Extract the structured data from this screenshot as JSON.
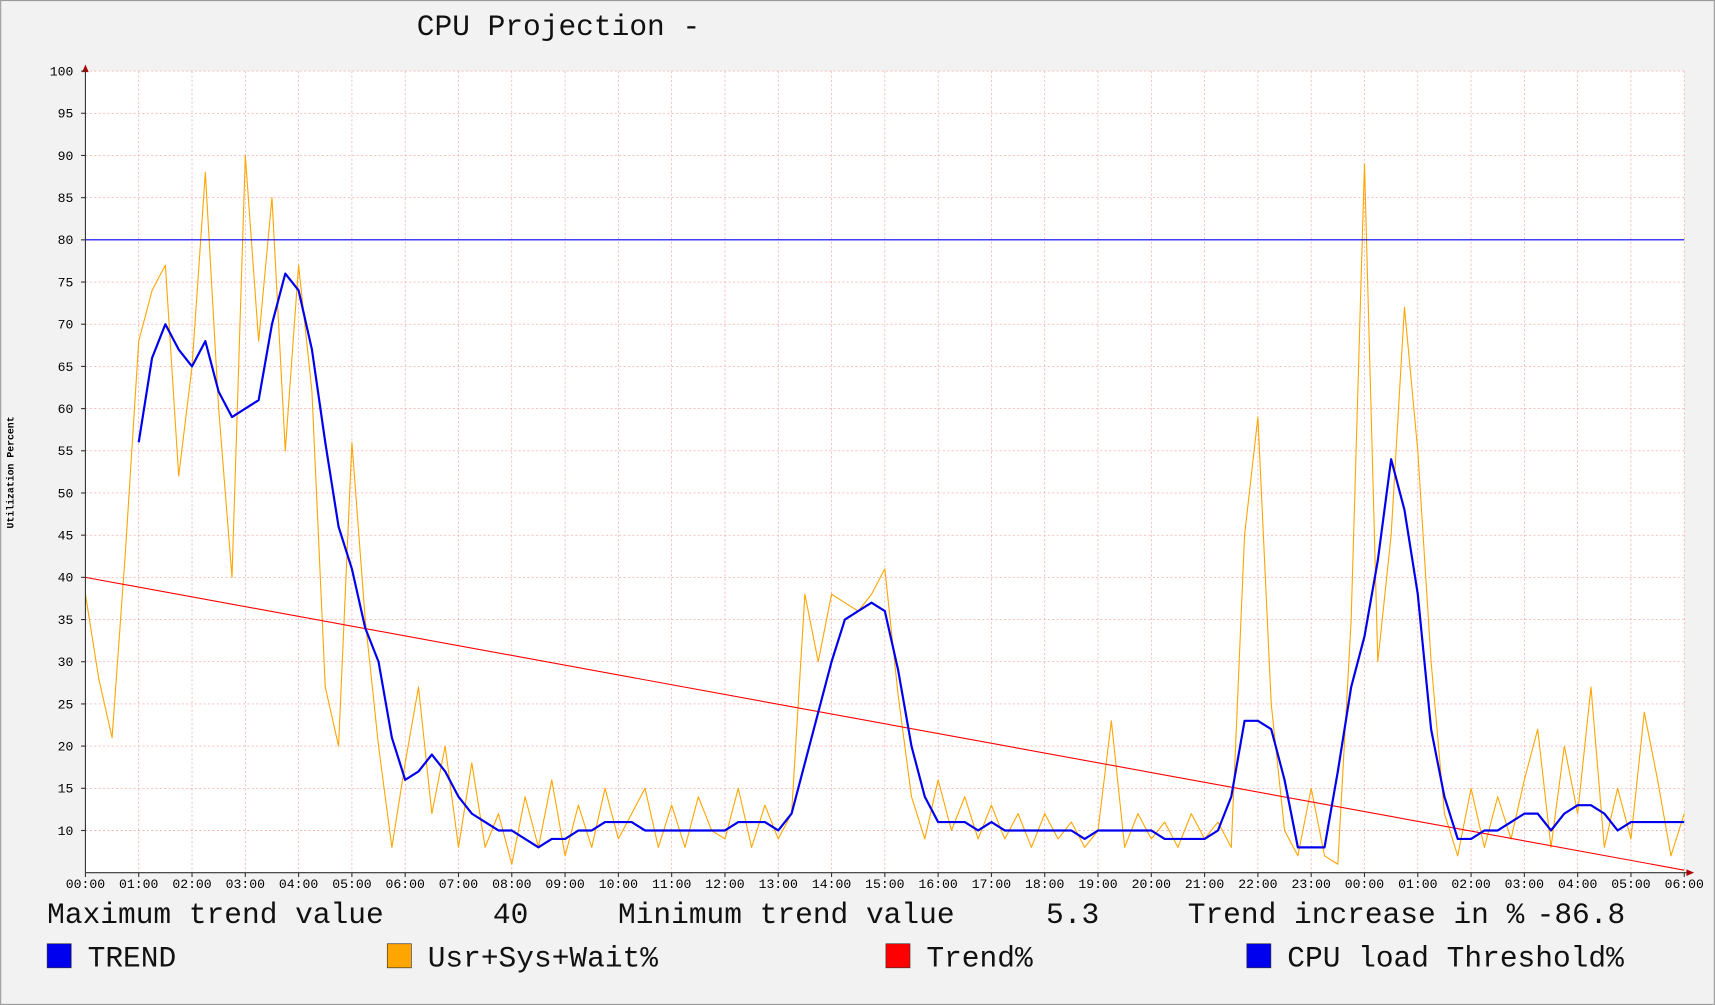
{
  "chart_data": {
    "type": "line",
    "title": "CPU Projection -",
    "y_label": "Utilization Percent",
    "xlim": [
      0,
      30
    ],
    "xticks": [
      {
        "value": 0,
        "label": "00:00"
      },
      {
        "value": 1,
        "label": "01:00"
      },
      {
        "value": 2,
        "label": "02:00"
      },
      {
        "value": 3,
        "label": "03:00"
      },
      {
        "value": 4,
        "label": "04:00"
      },
      {
        "value": 5,
        "label": "05:00"
      },
      {
        "value": 6,
        "label": "06:00"
      },
      {
        "value": 7,
        "label": "07:00"
      },
      {
        "value": 8,
        "label": "08:00"
      },
      {
        "value": 9,
        "label": "09:00"
      },
      {
        "value": 10,
        "label": "10:00"
      },
      {
        "value": 11,
        "label": "11:00"
      },
      {
        "value": 12,
        "label": "12:00"
      },
      {
        "value": 13,
        "label": "13:00"
      },
      {
        "value": 14,
        "label": "14:00"
      },
      {
        "value": 15,
        "label": "15:00"
      },
      {
        "value": 16,
        "label": "16:00"
      },
      {
        "value": 17,
        "label": "17:00"
      },
      {
        "value": 18,
        "label": "18:00"
      },
      {
        "value": 19,
        "label": "19:00"
      },
      {
        "value": 20,
        "label": "20:00"
      },
      {
        "value": 21,
        "label": "21:00"
      },
      {
        "value": 22,
        "label": "22:00"
      },
      {
        "value": 23,
        "label": "23:00"
      },
      {
        "value": 24,
        "label": "00:00"
      },
      {
        "value": 25,
        "label": "01:00"
      },
      {
        "value": 26,
        "label": "02:00"
      },
      {
        "value": 27,
        "label": "03:00"
      },
      {
        "value": 28,
        "label": "04:00"
      },
      {
        "value": 29,
        "label": "05:00"
      },
      {
        "value": 30,
        "label": "06:00"
      }
    ],
    "ylim": [
      5,
      100
    ],
    "yticks": [
      10,
      15,
      20,
      25,
      30,
      35,
      40,
      45,
      50,
      55,
      60,
      65,
      70,
      75,
      80,
      85,
      90,
      95,
      100
    ],
    "grid": true,
    "series": [
      {
        "name": "TREND",
        "color": "#0000ee",
        "x": [
          1,
          1.25,
          1.5,
          1.75,
          2,
          2.25,
          2.5,
          2.75,
          3,
          3.25,
          3.5,
          3.75,
          4,
          4.25,
          4.5,
          4.75,
          5,
          5.25,
          5.5,
          5.75,
          6,
          6.25,
          6.5,
          6.75,
          7,
          7.25,
          7.5,
          7.75,
          8,
          8.25,
          8.5,
          8.75,
          9,
          9.25,
          9.5,
          9.75,
          10,
          10.25,
          10.5,
          10.75,
          11,
          11.25,
          11.5,
          11.75,
          12,
          12.25,
          12.5,
          12.75,
          13,
          13.25,
          13.5,
          13.75,
          14,
          14.25,
          14.5,
          14.75,
          15,
          15.25,
          15.5,
          15.75,
          16,
          16.25,
          16.5,
          16.75,
          17,
          17.25,
          17.5,
          17.75,
          18,
          18.25,
          18.5,
          18.75,
          19,
          19.25,
          19.5,
          19.75,
          20,
          20.25,
          20.5,
          20.75,
          21,
          21.25,
          21.5,
          21.75,
          22,
          22.25,
          22.5,
          22.75,
          23,
          23.25,
          23.5,
          23.75,
          24,
          24.25,
          24.5,
          24.75,
          25,
          25.25,
          25.5,
          25.75,
          26,
          26.25,
          26.5,
          26.75,
          27,
          27.25,
          27.5,
          27.75,
          28,
          28.25,
          28.5,
          28.75,
          29,
          29.25,
          29.5,
          29.75,
          30
        ],
        "values": [
          56,
          66,
          70,
          67,
          65,
          68,
          62,
          59,
          60,
          61,
          70,
          76,
          74,
          67,
          56,
          46,
          41,
          34,
          30,
          21,
          16,
          17,
          19,
          17,
          14,
          12,
          11,
          10,
          10,
          9,
          8,
          9,
          9,
          10,
          10,
          11,
          11,
          11,
          10,
          10,
          10,
          10,
          10,
          10,
          10,
          11,
          11,
          11,
          10,
          12,
          18,
          24,
          30,
          35,
          36,
          37,
          36,
          29,
          20,
          14,
          11,
          11,
          11,
          10,
          11,
          10,
          10,
          10,
          10,
          10,
          10,
          9,
          10,
          10,
          10,
          10,
          10,
          9,
          9,
          9,
          9,
          10,
          14,
          23,
          23,
          22,
          16,
          8,
          8,
          8,
          17,
          27,
          33,
          42,
          54,
          48,
          38,
          22,
          14,
          9,
          9,
          10,
          10,
          11,
          12,
          12,
          10,
          12,
          13,
          13,
          12,
          10,
          11,
          11,
          11,
          11,
          11
        ]
      },
      {
        "name": "Usr+Sys+Wait%",
        "color": "#ffa500",
        "x": [
          0,
          0.25,
          0.5,
          0.75,
          1,
          1.25,
          1.5,
          1.75,
          2,
          2.25,
          2.5,
          2.75,
          3,
          3.25,
          3.5,
          3.75,
          4,
          4.25,
          4.5,
          4.75,
          5,
          5.25,
          5.5,
          5.75,
          6,
          6.25,
          6.5,
          6.75,
          7,
          7.25,
          7.5,
          7.75,
          8,
          8.25,
          8.5,
          8.75,
          9,
          9.25,
          9.5,
          9.75,
          10,
          10.25,
          10.5,
          10.75,
          11,
          11.25,
          11.5,
          11.75,
          12,
          12.25,
          12.5,
          12.75,
          13,
          13.25,
          13.5,
          13.75,
          14,
          14.25,
          14.5,
          14.75,
          15,
          15.25,
          15.5,
          15.75,
          16,
          16.25,
          16.5,
          16.75,
          17,
          17.25,
          17.5,
          17.75,
          18,
          18.25,
          18.5,
          18.75,
          19,
          19.25,
          19.5,
          19.75,
          20,
          20.25,
          20.5,
          20.75,
          21,
          21.25,
          21.5,
          21.75,
          22,
          22.25,
          22.5,
          22.75,
          23,
          23.25,
          23.5,
          23.75,
          24,
          24.25,
          24.5,
          24.75,
          25,
          25.25,
          25.5,
          25.75,
          26,
          26.25,
          26.5,
          26.75,
          27,
          27.25,
          27.5,
          27.75,
          28,
          28.25,
          28.5,
          28.75,
          29,
          29.25,
          29.5,
          29.75,
          30
        ],
        "values": [
          38,
          28,
          21,
          43,
          68,
          74,
          77,
          52,
          65,
          88,
          60,
          40,
          90,
          68,
          85,
          55,
          77,
          62,
          27,
          20,
          56,
          35,
          20,
          8,
          18,
          27,
          12,
          20,
          8,
          18,
          8,
          12,
          6,
          14,
          8,
          16,
          7,
          13,
          8,
          15,
          9,
          12,
          15,
          8,
          13,
          8,
          14,
          10,
          9,
          15,
          8,
          13,
          9,
          12,
          38,
          30,
          38,
          37,
          36,
          38,
          41,
          26,
          14,
          9,
          16,
          10,
          14,
          9,
          13,
          9,
          12,
          8,
          12,
          9,
          11,
          8,
          10,
          23,
          8,
          12,
          9,
          11,
          8,
          12,
          9,
          11,
          8,
          45,
          59,
          25,
          10,
          7,
          15,
          7,
          6,
          35,
          89,
          30,
          45,
          72,
          55,
          30,
          12,
          7,
          15,
          8,
          14,
          9,
          16,
          22,
          8,
          20,
          12,
          27,
          8,
          15,
          9,
          24,
          16,
          7,
          12
        ]
      },
      {
        "name": "Trend%",
        "color": "#ff0000",
        "x": [
          0,
          30
        ],
        "values": [
          40,
          5.3
        ]
      },
      {
        "name": "CPU load Threshold%",
        "color": "#0000ee",
        "x": [
          0,
          30
        ],
        "values": [
          80,
          80
        ]
      }
    ],
    "annotations": [
      {
        "text": "Maximum trend value",
        "value": 40
      },
      {
        "text": "Minimum trend value",
        "value": 5.3
      },
      {
        "text": "Trend increase in %",
        "value": -86.8
      }
    ]
  }
}
